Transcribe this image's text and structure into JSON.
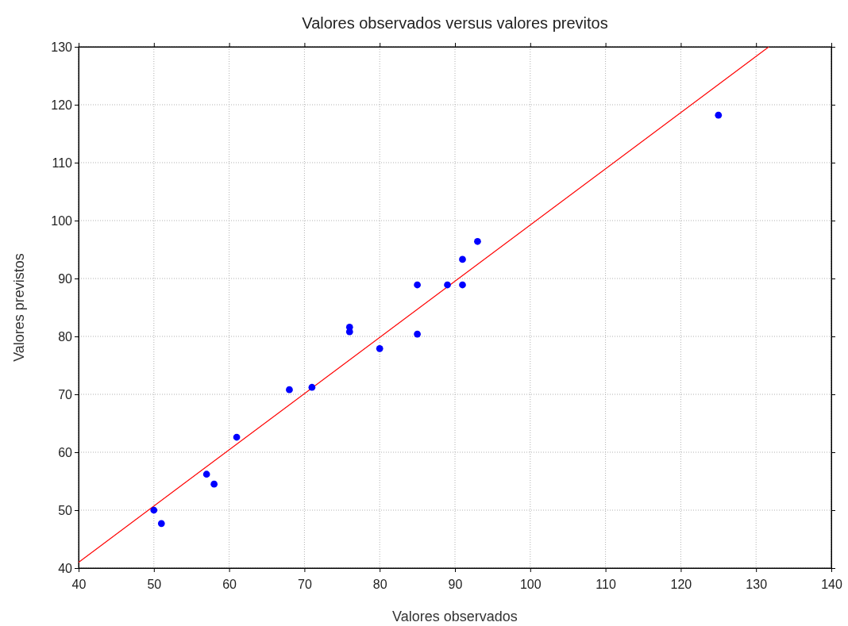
{
  "chart_data": {
    "type": "scatter",
    "title": "Valores observados versus valores previtos",
    "xlabel": "Valores observados",
    "ylabel": "Valores previstos",
    "xlim": [
      40,
      140
    ],
    "xticks": [
      40,
      50,
      60,
      70,
      80,
      90,
      100,
      110,
      120,
      130,
      140
    ],
    "ylim": [
      40,
      130
    ],
    "yticks": [
      40,
      50,
      60,
      70,
      80,
      90,
      100,
      110,
      120,
      130
    ],
    "grid": true,
    "series": [
      {
        "color": "#0000ff",
        "marker": "circle",
        "x": [
          50,
          51,
          57,
          58,
          61,
          68,
          71,
          76,
          76,
          80,
          85,
          85,
          89,
          91,
          91,
          93,
          125
        ],
        "values": [
          50.0,
          47.7,
          56.2,
          54.5,
          62.6,
          70.8,
          71.2,
          81.6,
          80.8,
          77.9,
          88.9,
          80.4,
          88.9,
          93.3,
          88.9,
          96.4,
          118.2
        ]
      },
      {
        "type": "line",
        "color": "#ff0000",
        "marker": "none",
        "line_style": "solid",
        "x": [
          40,
          131.7
        ],
        "values": [
          41,
          130
        ]
      }
    ]
  }
}
